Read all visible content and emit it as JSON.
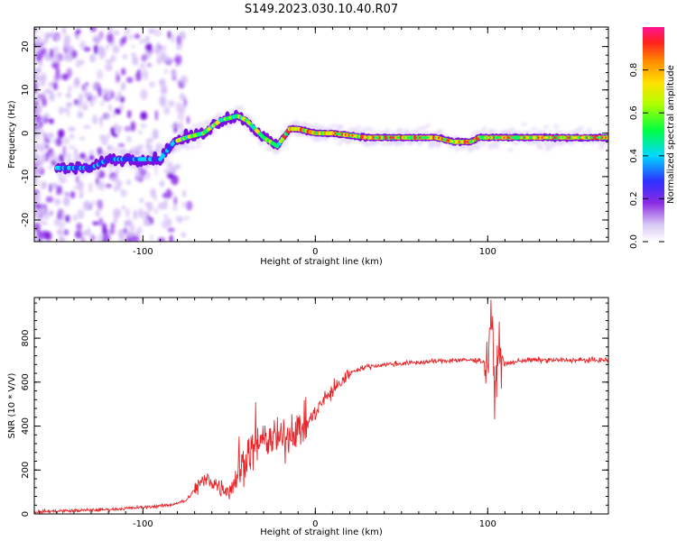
{
  "title": "S149.2023.030.10.40.R07",
  "colors": {
    "snr_line": "#e8262a",
    "axis": "#000000"
  },
  "chart_data": [
    {
      "type": "heatmap",
      "xlabel": "Height of straight line (km)",
      "ylabel": "Frequency (Hz)",
      "xlim": [
        -163,
        170
      ],
      "ylim": [
        -25,
        24.5
      ],
      "x_ticks": [
        "-100",
        "0",
        "100"
      ],
      "y_ticks": [
        "20",
        "10",
        "0",
        "-10",
        "-20"
      ],
      "colorbar": {
        "label": "Normalized spectral amplitude",
        "range": [
          0,
          1
        ],
        "ticks": [
          "0.0",
          "0.2",
          "0.4",
          "0.6",
          "0.8"
        ]
      },
      "ridge": {
        "x": [
          -145,
          -130,
          -120,
          -110,
          -100,
          -90,
          -82,
          -75,
          -65,
          -55,
          -45,
          -40,
          -35,
          -30,
          -22,
          -15,
          -10,
          0,
          10,
          30,
          50,
          70,
          80,
          90,
          95,
          100,
          110,
          130,
          150,
          170
        ],
        "y": [
          -8,
          -8,
          -6,
          -6,
          -6,
          -6,
          -2,
          -1,
          0,
          3,
          4,
          3,
          1,
          -1,
          -3,
          1,
          1,
          0,
          0,
          -1,
          -1,
          -1,
          -2,
          -2,
          -1,
          -1,
          -1,
          -1,
          -1,
          -1
        ]
      }
    },
    {
      "type": "line",
      "xlabel": "Height of straight line (km)",
      "ylabel": "SNR (10 * V/V)",
      "xlim": [
        -163,
        170
      ],
      "ylim": [
        0,
        985
      ],
      "x_ticks": [
        "-100",
        "0",
        "100"
      ],
      "y_ticks": [
        "0",
        "200",
        "400",
        "600",
        "800"
      ],
      "series": [
        {
          "x": [
            -163,
            -140,
            -120,
            -100,
            -85,
            -75,
            -68,
            -62,
            -55,
            -50,
            -45,
            -40,
            -35,
            -30,
            -25,
            -20,
            -15,
            -10,
            -5,
            0,
            5,
            10,
            15,
            20,
            25,
            30,
            40,
            60,
            80,
            95,
            100,
            102,
            104,
            106,
            110,
            120,
            140,
            160,
            170
          ],
          "y": [
            10,
            15,
            20,
            30,
            40,
            60,
            130,
            160,
            120,
            110,
            180,
            260,
            300,
            330,
            340,
            330,
            360,
            390,
            410,
            460,
            520,
            560,
            600,
            640,
            660,
            670,
            680,
            690,
            700,
            700,
            680,
            950,
            520,
            760,
            680,
            700,
            700,
            700,
            700
          ]
        }
      ]
    }
  ]
}
